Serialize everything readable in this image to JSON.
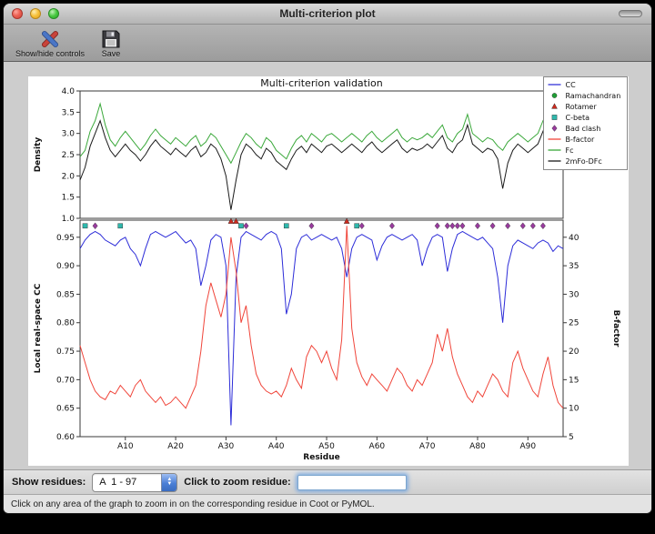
{
  "window": {
    "title": "Multi-criterion plot"
  },
  "toolbar": {
    "show_hide_label": "Show/hide controls",
    "save_label": "Save"
  },
  "controls": {
    "show_residues_label": "Show residues:",
    "residue_range_value": "A  1 - 97",
    "zoom_label": "Click to zoom residue:",
    "zoom_value": ""
  },
  "status": {
    "text": "Click on any area of the graph to zoom in on the corresponding residue in Coot or PyMOL."
  },
  "chart_data": {
    "type": "line",
    "title": "Multi-criterion validation",
    "xlabel": "Residue",
    "x_range": [
      1,
      97
    ],
    "xticks": {
      "values": [
        10,
        20,
        30,
        40,
        50,
        60,
        70,
        80,
        90
      ],
      "labels": [
        "A10",
        "A20",
        "A30",
        "A40",
        "A50",
        "A60",
        "A70",
        "A80",
        "A90"
      ]
    },
    "top_plot": {
      "ylabel": "Density",
      "ylim": [
        1.0,
        4.0
      ],
      "yticks": [
        "4.0",
        "3.5",
        "3.0",
        "2.5",
        "2.0",
        "1.5",
        "1.0"
      ],
      "series": [
        {
          "name": "Fc",
          "color": "#3aa83a",
          "values": [
            2.45,
            2.6,
            3.05,
            3.3,
            3.7,
            3.2,
            2.85,
            2.7,
            2.9,
            3.05,
            2.9,
            2.75,
            2.6,
            2.75,
            2.95,
            3.1,
            2.95,
            2.85,
            2.75,
            2.9,
            2.8,
            2.7,
            2.85,
            2.95,
            2.7,
            2.8,
            3.0,
            2.9,
            2.7,
            2.5,
            2.3,
            2.55,
            2.8,
            3.0,
            2.9,
            2.75,
            2.65,
            2.9,
            2.8,
            2.6,
            2.5,
            2.4,
            2.65,
            2.85,
            2.95,
            2.8,
            3.0,
            2.9,
            2.8,
            2.95,
            3.0,
            2.9,
            2.8,
            2.9,
            3.0,
            2.9,
            2.8,
            2.95,
            3.05,
            2.9,
            2.8,
            2.9,
            3.0,
            3.1,
            2.9,
            2.8,
            2.9,
            2.85,
            2.9,
            3.0,
            2.9,
            3.05,
            3.2,
            2.9,
            2.8,
            3.0,
            3.1,
            3.45,
            3.0,
            2.9,
            2.8,
            2.9,
            2.85,
            2.7,
            2.6,
            2.8,
            2.9,
            3.0,
            2.9,
            2.8,
            2.9,
            3.0,
            3.3,
            3.1,
            2.9,
            3.2,
            3.35
          ]
        },
        {
          "name": "2mFo-DFc",
          "color": "#1a1a1a",
          "values": [
            1.9,
            2.2,
            2.7,
            3.0,
            3.3,
            2.9,
            2.6,
            2.45,
            2.6,
            2.75,
            2.6,
            2.5,
            2.35,
            2.5,
            2.7,
            2.85,
            2.7,
            2.6,
            2.5,
            2.65,
            2.55,
            2.45,
            2.6,
            2.7,
            2.45,
            2.55,
            2.75,
            2.65,
            2.4,
            2.0,
            1.2,
            1.9,
            2.5,
            2.75,
            2.65,
            2.5,
            2.4,
            2.65,
            2.55,
            2.35,
            2.25,
            2.15,
            2.4,
            2.6,
            2.7,
            2.55,
            2.75,
            2.65,
            2.55,
            2.7,
            2.75,
            2.65,
            2.55,
            2.65,
            2.75,
            2.65,
            2.55,
            2.7,
            2.8,
            2.65,
            2.55,
            2.65,
            2.75,
            2.85,
            2.65,
            2.55,
            2.65,
            2.6,
            2.65,
            2.75,
            2.65,
            2.8,
            2.95,
            2.65,
            2.55,
            2.75,
            2.85,
            3.2,
            2.75,
            2.65,
            2.55,
            2.65,
            2.6,
            2.4,
            1.7,
            2.3,
            2.6,
            2.75,
            2.65,
            2.55,
            2.65,
            2.75,
            3.05,
            2.85,
            2.65,
            2.95,
            3.1
          ]
        }
      ]
    },
    "bottom_plot": {
      "ylabel_left": "Local real-space CC",
      "ylabel_right": "B-factor",
      "ylim_left": [
        0.6,
        0.98
      ],
      "ylim_right": [
        5,
        43
      ],
      "yticks_left": [
        "0.95",
        "0.90",
        "0.85",
        "0.80",
        "0.75",
        "0.70",
        "0.65",
        "0.60"
      ],
      "yticks_right": [
        "40",
        "35",
        "30",
        "25",
        "20",
        "15",
        "10",
        "5"
      ],
      "series": [
        {
          "name": "CC",
          "axis": "left",
          "color": "#2c2cd8",
          "values": [
            0.93,
            0.945,
            0.955,
            0.96,
            0.955,
            0.945,
            0.94,
            0.935,
            0.945,
            0.95,
            0.93,
            0.92,
            0.9,
            0.93,
            0.955,
            0.96,
            0.955,
            0.95,
            0.955,
            0.96,
            0.95,
            0.94,
            0.945,
            0.93,
            0.865,
            0.9,
            0.945,
            0.955,
            0.95,
            0.9,
            0.62,
            0.88,
            0.95,
            0.96,
            0.955,
            0.95,
            0.945,
            0.955,
            0.96,
            0.955,
            0.93,
            0.815,
            0.85,
            0.93,
            0.95,
            0.955,
            0.945,
            0.95,
            0.955,
            0.95,
            0.945,
            0.95,
            0.93,
            0.88,
            0.93,
            0.95,
            0.955,
            0.95,
            0.945,
            0.91,
            0.935,
            0.95,
            0.955,
            0.95,
            0.945,
            0.95,
            0.955,
            0.945,
            0.9,
            0.93,
            0.95,
            0.955,
            0.95,
            0.89,
            0.93,
            0.955,
            0.96,
            0.955,
            0.95,
            0.945,
            0.95,
            0.94,
            0.93,
            0.88,
            0.8,
            0.9,
            0.935,
            0.945,
            0.94,
            0.935,
            0.93,
            0.94,
            0.945,
            0.94,
            0.925,
            0.935,
            0.93
          ]
        },
        {
          "name": "B-factor",
          "axis": "right",
          "color": "#f0453a",
          "values": [
            21,
            18,
            15,
            13,
            12,
            11.5,
            13,
            12.5,
            14,
            13,
            12,
            14,
            15,
            13,
            12,
            11,
            12,
            10.5,
            11,
            12,
            11,
            10,
            12,
            14,
            20,
            28,
            32,
            29,
            26,
            30,
            40,
            34,
            25,
            28,
            21,
            16,
            14,
            13,
            12.5,
            13,
            12,
            14,
            17,
            15,
            13.5,
            19,
            21,
            20,
            18,
            20,
            17,
            15,
            22,
            42,
            24,
            18,
            15.5,
            14,
            16,
            15,
            14,
            13,
            15,
            17,
            16,
            14,
            13,
            15,
            14,
            16,
            18,
            23,
            20,
            24,
            19,
            16,
            14,
            12,
            11,
            13,
            12,
            14,
            16,
            15,
            13,
            12,
            18,
            20,
            17,
            15,
            13,
            12,
            16,
            19,
            14,
            11,
            10
          ]
        }
      ],
      "markers": [
        {
          "name": "Ramachandran",
          "shape": "circle",
          "color": "#1f9e35",
          "y": 0.97,
          "residues": []
        },
        {
          "name": "Rotamer",
          "shape": "triangle",
          "color": "#cc2a1e",
          "y": 0.978,
          "residues": [
            31,
            32,
            54
          ]
        },
        {
          "name": "C-beta",
          "shape": "square",
          "color": "#2fb8ac",
          "y": 0.97,
          "residues": [
            2,
            9,
            33,
            42,
            56
          ]
        },
        {
          "name": "Bad clash",
          "shape": "diamond",
          "color": "#993b9e",
          "y": 0.97,
          "residues": [
            4,
            34,
            47,
            57,
            63,
            72,
            74,
            75,
            76,
            77,
            80,
            83,
            86,
            89,
            91,
            93
          ]
        }
      ]
    },
    "legend": [
      {
        "label": "CC",
        "type": "line",
        "color": "#2c2cd8"
      },
      {
        "label": "Ramachandran",
        "type": "circle",
        "color": "#1f9e35"
      },
      {
        "label": "Rotamer",
        "type": "triangle",
        "color": "#cc2a1e"
      },
      {
        "label": "C-beta",
        "type": "square",
        "color": "#2fb8ac"
      },
      {
        "label": "Bad clash",
        "type": "diamond",
        "color": "#993b9e"
      },
      {
        "label": "B-factor",
        "type": "line",
        "color": "#f0453a"
      },
      {
        "label": "Fc",
        "type": "line",
        "color": "#3aa83a"
      },
      {
        "label": "2mFo-DFc",
        "type": "line",
        "color": "#1a1a1a"
      }
    ]
  }
}
